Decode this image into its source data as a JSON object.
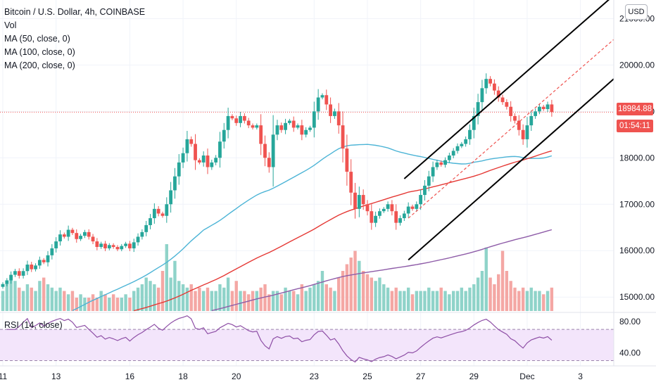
{
  "legend": {
    "symbol": "Bitcoin / U.S. Dollar, 4h, COINBASE",
    "vol": "Vol",
    "ma50": "MA (50, close, 0)",
    "ma100": "MA (100, close, 0)",
    "ma200": "MA (200, close, 0)"
  },
  "rsi_legend": "RSI (14, close)",
  "currency_button": "USD",
  "last_price": "18984.88",
  "countdown": "01:54:11",
  "colors": {
    "up": "#26a69a",
    "down": "#ef5350",
    "vol_up": "#8fd3c9",
    "vol_down": "#f4a7a4",
    "ma50": "#4cb4d6",
    "ma100": "#e53935",
    "ma200": "#8e5ca8",
    "rsi": "#8e4fa6",
    "rsi_band": "#f3e5fb",
    "channel": "#000000"
  },
  "chart_data": {
    "type": "candlestick",
    "price_axis": {
      "ticks": [
        15000,
        16000,
        17000,
        18000,
        19000,
        20000,
        21000
      ],
      "labels": [
        "15000.00",
        "16000.00",
        "17000.00",
        "18000.00",
        "19000.00",
        "20000.00",
        "21000.00"
      ],
      "range": [
        14700,
        21400
      ]
    },
    "x_axis": {
      "labels": [
        "11",
        "13",
        "16",
        "18",
        "20",
        "23",
        "25",
        "27",
        "29",
        "Dec",
        "3"
      ],
      "label_index": [
        0,
        13,
        31,
        44,
        57,
        76,
        89,
        102,
        115,
        128,
        141
      ]
    },
    "last_price": 18984.88,
    "closes": [
      15280,
      15360,
      15480,
      15560,
      15460,
      15560,
      15700,
      15600,
      15680,
      15800,
      15750,
      15900,
      16050,
      16200,
      16350,
      16300,
      16450,
      16380,
      16250,
      16320,
      16400,
      16300,
      16200,
      16080,
      16150,
      16050,
      16120,
      16080,
      16030,
      16100,
      16150,
      16050,
      16180,
      16300,
      16400,
      16550,
      16700,
      16900,
      16800,
      16750,
      17000,
      17300,
      17600,
      17900,
      18100,
      18400,
      18300,
      17950,
      17900,
      18050,
      17800,
      17900,
      18000,
      18350,
      18600,
      18900,
      18850,
      18750,
      18900,
      18800,
      18700,
      18650,
      18700,
      18300,
      18000,
      17800,
      18500,
      18700,
      18600,
      18750,
      18800,
      18650,
      18700,
      18500,
      18600,
      18650,
      19000,
      19300,
      19350,
      19150,
      18900,
      19000,
      18700,
      18200,
      17700,
      17250,
      16900,
      17200,
      17000,
      16850,
      16600,
      16750,
      16850,
      16900,
      17000,
      16850,
      16600,
      16700,
      16800,
      16950,
      16900,
      17000,
      17200,
      17400,
      17600,
      17800,
      17900,
      17850,
      17950,
      18050,
      18150,
      18250,
      18300,
      18400,
      18600,
      18900,
      19200,
      19500,
      19700,
      19600,
      19450,
      19300,
      19200,
      19100,
      18900,
      18800,
      18600,
      18400,
      18700,
      18900,
      19000,
      19100,
      19050,
      19150,
      18984.88
    ],
    "volume_relative": [
      0.3,
      0.4,
      0.5,
      0.45,
      0.35,
      0.3,
      0.4,
      0.35,
      0.3,
      0.45,
      0.5,
      0.4,
      0.35,
      0.3,
      0.35,
      0.3,
      0.25,
      0.3,
      0.2,
      0.25,
      0.2,
      0.2,
      0.25,
      0.2,
      0.3,
      0.25,
      0.2,
      0.25,
      0.2,
      0.2,
      0.25,
      0.2,
      0.3,
      0.35,
      0.4,
      0.5,
      0.45,
      0.4,
      0.35,
      0.6,
      1.0,
      0.5,
      0.75,
      0.45,
      0.4,
      0.35,
      0.4,
      0.3,
      0.35,
      0.3,
      0.35,
      0.3,
      0.3,
      0.4,
      0.35,
      0.5,
      0.3,
      0.45,
      0.3,
      0.3,
      0.25,
      0.3,
      0.3,
      0.35,
      0.4,
      0.25,
      0.3,
      0.3,
      0.25,
      0.35,
      0.3,
      0.3,
      0.25,
      0.4,
      0.3,
      0.35,
      0.4,
      0.45,
      0.6,
      0.4,
      0.35,
      0.3,
      0.5,
      0.6,
      0.7,
      0.8,
      0.9,
      0.75,
      0.6,
      0.55,
      0.5,
      0.45,
      0.5,
      0.4,
      0.35,
      0.3,
      0.35,
      0.3,
      0.3,
      0.35,
      0.25,
      0.3,
      0.3,
      0.3,
      0.35,
      0.3,
      0.3,
      0.35,
      0.3,
      0.25,
      0.3,
      0.3,
      0.35,
      0.3,
      0.35,
      0.4,
      0.5,
      0.6,
      0.95,
      0.5,
      0.4,
      0.55,
      0.9,
      0.6,
      0.45,
      0.35,
      0.3,
      0.35,
      0.3,
      0.35,
      0.3,
      0.3,
      0.25,
      0.3,
      0.35
    ]
  }
}
